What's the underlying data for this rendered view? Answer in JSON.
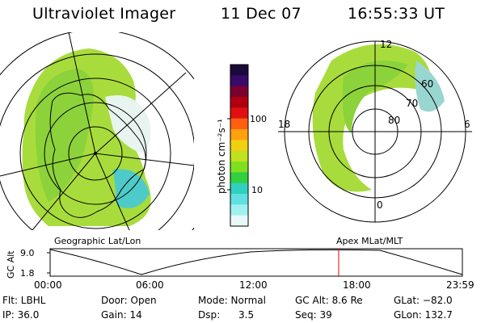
{
  "header": {
    "title": "Ultraviolet Imager",
    "date": "11 Dec 07",
    "time": "16:55:33 UT"
  },
  "geo_panel": {
    "caption": "Geographic Lat/Lon"
  },
  "polar_panel": {
    "caption": "Apex MLat/MLT",
    "mlt_labels": [
      "12",
      "18",
      "6",
      "0"
    ],
    "lat_labels": [
      "60",
      "70",
      "80"
    ]
  },
  "colorbar": {
    "label": "photon cm⁻²s⁻¹",
    "ticks": [
      "100",
      "10"
    ],
    "colors": [
      "#1a0a3a",
      "#3a0a6a",
      "#7a0030",
      "#b00010",
      "#e01010",
      "#ff6010",
      "#ffa010",
      "#f0d010",
      "#c0e020",
      "#80e020",
      "#30d040",
      "#30d0c0",
      "#60e0e0",
      "#a0f0f0",
      "#e8f8f8"
    ]
  },
  "altitude_plot": {
    "ylabel": "GC Alt",
    "yticks": [
      "9.0",
      "1.8"
    ],
    "xticks": [
      "00:00",
      "06:00",
      "12:00",
      "18:00",
      "23:59"
    ],
    "current_marker_color": "#e00000"
  },
  "info": {
    "flt": "Flt: LBHL",
    "ip": "IP: 36.0",
    "door": "Door: Open",
    "gain": "Gain: 14",
    "mode": "Mode: Normal",
    "dsp": "Dsp:      3.5",
    "gcalt": "GC Alt: 8.6 Re",
    "seq": "Seq: 39",
    "glat": "GLat: −82.0",
    "glon": "GLon: 132.7"
  }
}
